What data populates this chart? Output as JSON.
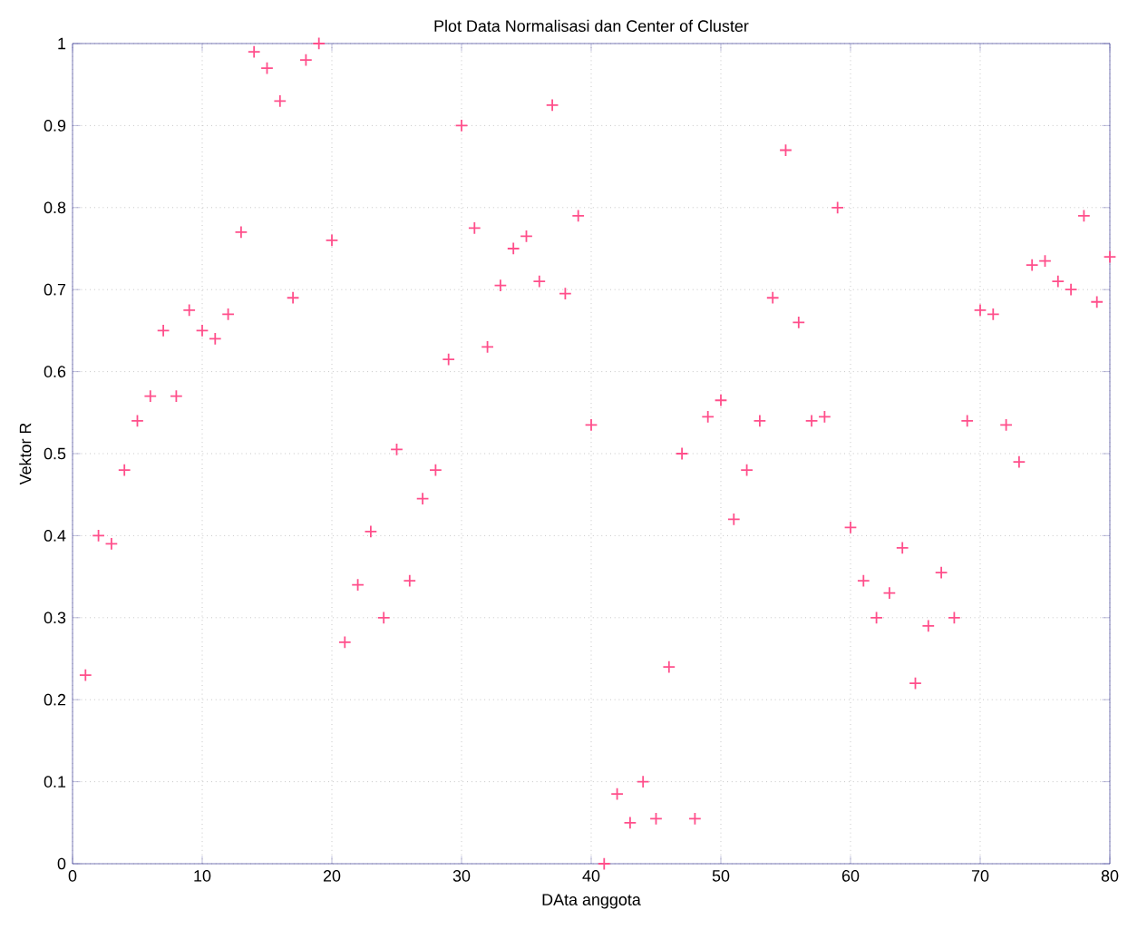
{
  "chart_data": {
    "type": "scatter",
    "title": "Plot Data Normalisasi dan Center of Cluster",
    "xlabel": "DAta anggota",
    "ylabel": "Vektor R",
    "x": [
      1,
      2,
      3,
      4,
      5,
      6,
      7,
      8,
      9,
      10,
      11,
      12,
      13,
      14,
      15,
      16,
      17,
      18,
      19,
      20,
      21,
      22,
      23,
      24,
      25,
      26,
      27,
      28,
      29,
      30,
      31,
      32,
      33,
      34,
      35,
      36,
      37,
      38,
      39,
      40,
      41,
      42,
      43,
      44,
      45,
      46,
      47,
      48,
      49,
      50,
      51,
      52,
      53,
      54,
      55,
      56,
      57,
      58,
      59,
      60,
      61,
      62,
      63,
      64,
      65,
      66,
      67,
      68,
      69,
      70,
      71,
      72,
      73,
      74,
      75,
      76,
      77,
      78,
      79,
      80
    ],
    "series": [
      {
        "color": "#ff4f8b",
        "values": [
          0.23,
          0.4,
          0.39,
          0.48,
          0.54,
          0.57,
          0.65,
          0.57,
          0.675,
          0.65,
          0.64,
          0.67,
          0.77,
          0.99,
          0.97,
          0.93,
          0.69,
          0.98,
          1.0,
          0.76,
          0.27,
          0.34,
          0.405,
          0.3,
          0.505,
          0.345,
          0.445,
          0.48,
          0.615,
          0.9,
          0.775,
          0.63,
          0.705,
          0.75,
          0.765,
          0.71,
          0.925,
          0.695,
          0.79,
          0.535,
          0.0,
          0.085,
          0.05,
          0.1,
          0.055,
          0.24,
          0.5,
          0.055,
          0.545,
          0.565,
          0.42,
          0.48,
          0.54,
          0.69,
          0.87,
          0.66,
          0.54,
          0.545,
          0.8,
          0.41,
          0.345,
          0.3,
          0.33,
          0.385,
          0.22,
          0.29,
          0.355,
          0.3,
          0.54,
          0.675,
          0.67,
          0.535,
          0.49,
          0.73,
          0.735,
          0.71,
          0.7,
          0.79,
          0.685,
          0.74
        ]
      }
    ],
    "xlim": [
      0,
      80
    ],
    "ylim": [
      0,
      1
    ],
    "xticks": [
      0,
      10,
      20,
      30,
      40,
      50,
      60,
      70,
      80
    ],
    "yticks": [
      0,
      0.1,
      0.2,
      0.3,
      0.4,
      0.5,
      0.6,
      0.7,
      0.8,
      0.9,
      1
    ],
    "grid": true,
    "marker": "cross"
  }
}
